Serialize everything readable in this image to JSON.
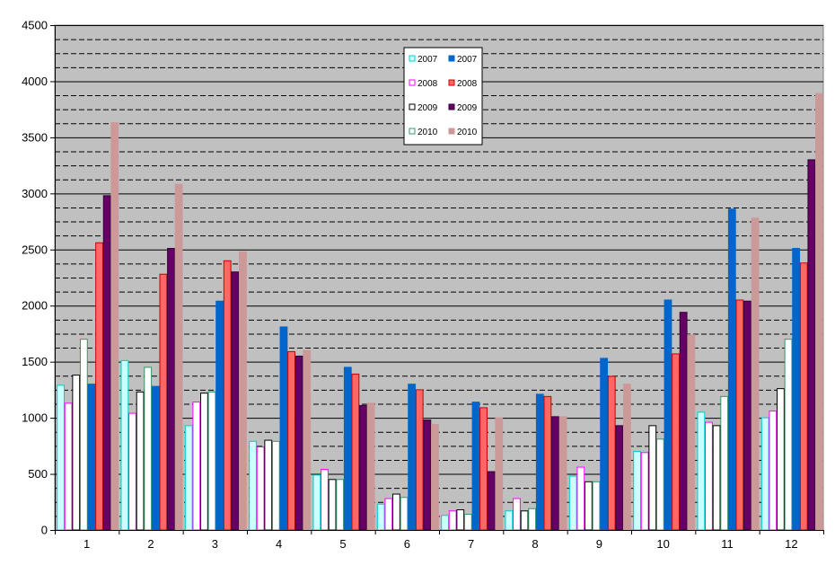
{
  "chart_data": {
    "type": "bar",
    "categories": [
      "1",
      "2",
      "3",
      "4",
      "5",
      "6",
      "7",
      "8",
      "9",
      "10",
      "11",
      "12"
    ],
    "ylim": [
      0,
      4500
    ],
    "yticks": [
      0,
      500,
      1000,
      1500,
      2000,
      2500,
      3000,
      3500,
      4000,
      4500
    ],
    "grid": "dashed horizontal lines every 125",
    "plot_background": "#c0c0c0",
    "legend_position": "upper-middle",
    "series": [
      {
        "name": "2007",
        "color": "#ccffff",
        "stroke": "#00cccc",
        "values": [
          1290,
          1510,
          930,
          790,
          490,
          230,
          130,
          170,
          480,
          700,
          1050,
          1000
        ]
      },
      {
        "name": "2008",
        "color": "#ffffff",
        "stroke": "#ff00ff",
        "values": [
          1130,
          1040,
          1140,
          740,
          540,
          280,
          170,
          280,
          560,
          690,
          960,
          1060
        ]
      },
      {
        "name": "2009",
        "color": "#ffffff",
        "stroke": "#000000",
        "values": [
          1380,
          1230,
          1220,
          800,
          450,
          320,
          180,
          170,
          430,
          930,
          930,
          1260
        ]
      },
      {
        "name": "2010",
        "color": "#ffffff",
        "stroke": "#339966",
        "values": [
          1700,
          1450,
          1230,
          790,
          450,
          290,
          140,
          190,
          430,
          810,
          1190,
          1700
        ]
      },
      {
        "name": "2007",
        "color": "#0066cc",
        "stroke": "#0066cc",
        "values": [
          1300,
          1280,
          2040,
          1810,
          1450,
          1300,
          1140,
          1210,
          1530,
          2050,
          2860,
          2510
        ]
      },
      {
        "name": "2008",
        "color": "#ff6666",
        "stroke": "#cc0000",
        "values": [
          2560,
          2280,
          2400,
          1590,
          1390,
          1250,
          1090,
          1190,
          1370,
          1570,
          2050,
          2380
        ]
      },
      {
        "name": "2009",
        "color": "#660066",
        "stroke": "#330033",
        "values": [
          2980,
          2510,
          2300,
          1550,
          1110,
          980,
          520,
          1010,
          930,
          1940,
          2040,
          3300
        ]
      },
      {
        "name": "2010",
        "color": "#cc9999",
        "stroke": "#cc9999",
        "values": [
          3630,
          3080,
          2480,
          1600,
          1130,
          940,
          1000,
          1010,
          1300,
          1740,
          2780,
          3890
        ]
      }
    ]
  },
  "legend": {
    "items": [
      {
        "label": "2007",
        "color": "#ccffff",
        "stroke": "#00cccc"
      },
      {
        "label": "2007",
        "color": "#0066cc",
        "stroke": "#0066cc"
      },
      {
        "label": "2008",
        "color": "#ffffff",
        "stroke": "#ff00ff"
      },
      {
        "label": "2008",
        "color": "#ff6666",
        "stroke": "#cc0000"
      },
      {
        "label": "2009",
        "color": "#ffffff",
        "stroke": "#000000"
      },
      {
        "label": "2009",
        "color": "#660066",
        "stroke": "#330033"
      },
      {
        "label": "2010",
        "color": "#ffffff",
        "stroke": "#339966"
      },
      {
        "label": "2010",
        "color": "#cc9999",
        "stroke": "#cc9999"
      }
    ]
  }
}
